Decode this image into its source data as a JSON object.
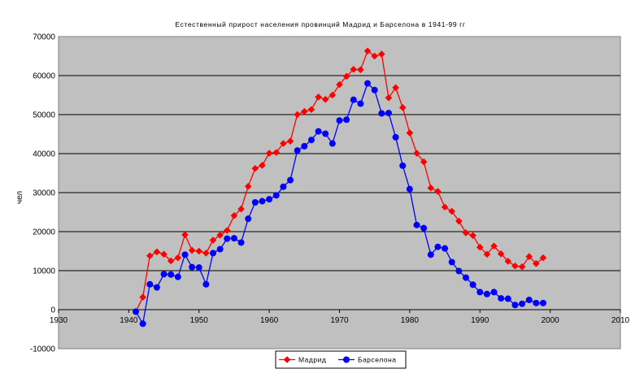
{
  "chart_data": {
    "type": "line",
    "title": "Естественный прирост населения провинций Мадрид и Барселона в 1941-99 гг",
    "xlabel": "",
    "ylabel": "чел",
    "xlim": [
      1930,
      2010
    ],
    "ylim": [
      -10000,
      70000
    ],
    "x_ticks": [
      "1930",
      "1940",
      "1950",
      "1960",
      "1970",
      "1980",
      "1990",
      "2000",
      "2010"
    ],
    "y_ticks": [
      "-10000",
      "0",
      "10000",
      "20000",
      "30000",
      "40000",
      "50000",
      "60000",
      "70000"
    ],
    "grid": "horizontal",
    "legend_position": "bottom",
    "x": [
      1941,
      1942,
      1943,
      1944,
      1945,
      1946,
      1947,
      1948,
      1949,
      1950,
      1951,
      1952,
      1953,
      1954,
      1955,
      1956,
      1957,
      1958,
      1959,
      1960,
      1961,
      1962,
      1963,
      1964,
      1965,
      1966,
      1967,
      1968,
      1969,
      1970,
      1971,
      1972,
      1973,
      1974,
      1975,
      1976,
      1977,
      1978,
      1979,
      1980,
      1981,
      1982,
      1983,
      1984,
      1985,
      1986,
      1987,
      1988,
      1989,
      1990,
      1991,
      1992,
      1993,
      1994,
      1995,
      1996,
      1997,
      1998,
      1999
    ],
    "series": [
      {
        "name": "Мадрид",
        "color": "#ff0000",
        "marker": "diamond",
        "values": [
          -500,
          3200,
          13800,
          14800,
          14200,
          12500,
          13300,
          19200,
          15200,
          15000,
          14500,
          17800,
          19100,
          20300,
          24100,
          25800,
          31600,
          36200,
          37000,
          40100,
          40300,
          42600,
          43200,
          50000,
          50800,
          51300,
          54500,
          53900,
          55000,
          57700,
          59800,
          61600,
          61500,
          66300,
          65000,
          65500,
          54300,
          56900,
          51800,
          45300,
          40100,
          37900,
          31200,
          30300,
          26300,
          25200,
          22700,
          19700,
          19000,
          16000,
          14200,
          16300,
          14300,
          12400,
          11200,
          11000,
          13600,
          11800,
          13300
        ]
      },
      {
        "name": "Барселона",
        "color": "#0000ff",
        "marker": "circle",
        "values": [
          -500,
          -3600,
          6500,
          5700,
          9100,
          9000,
          8400,
          14100,
          10900,
          10800,
          6500,
          14500,
          15500,
          18200,
          18300,
          17200,
          23300,
          27500,
          27800,
          28300,
          29300,
          31500,
          33200,
          40800,
          41900,
          43500,
          45700,
          45100,
          42600,
          48500,
          48700,
          53800,
          52800,
          58000,
          56300,
          50300,
          50400,
          44200,
          36900,
          30900,
          21700,
          20900,
          14100,
          16100,
          15700,
          12200,
          9900,
          8200,
          6400,
          4500,
          4000,
          4500,
          2900,
          2800,
          1200,
          1500,
          2500,
          1700,
          1700
        ]
      }
    ]
  }
}
